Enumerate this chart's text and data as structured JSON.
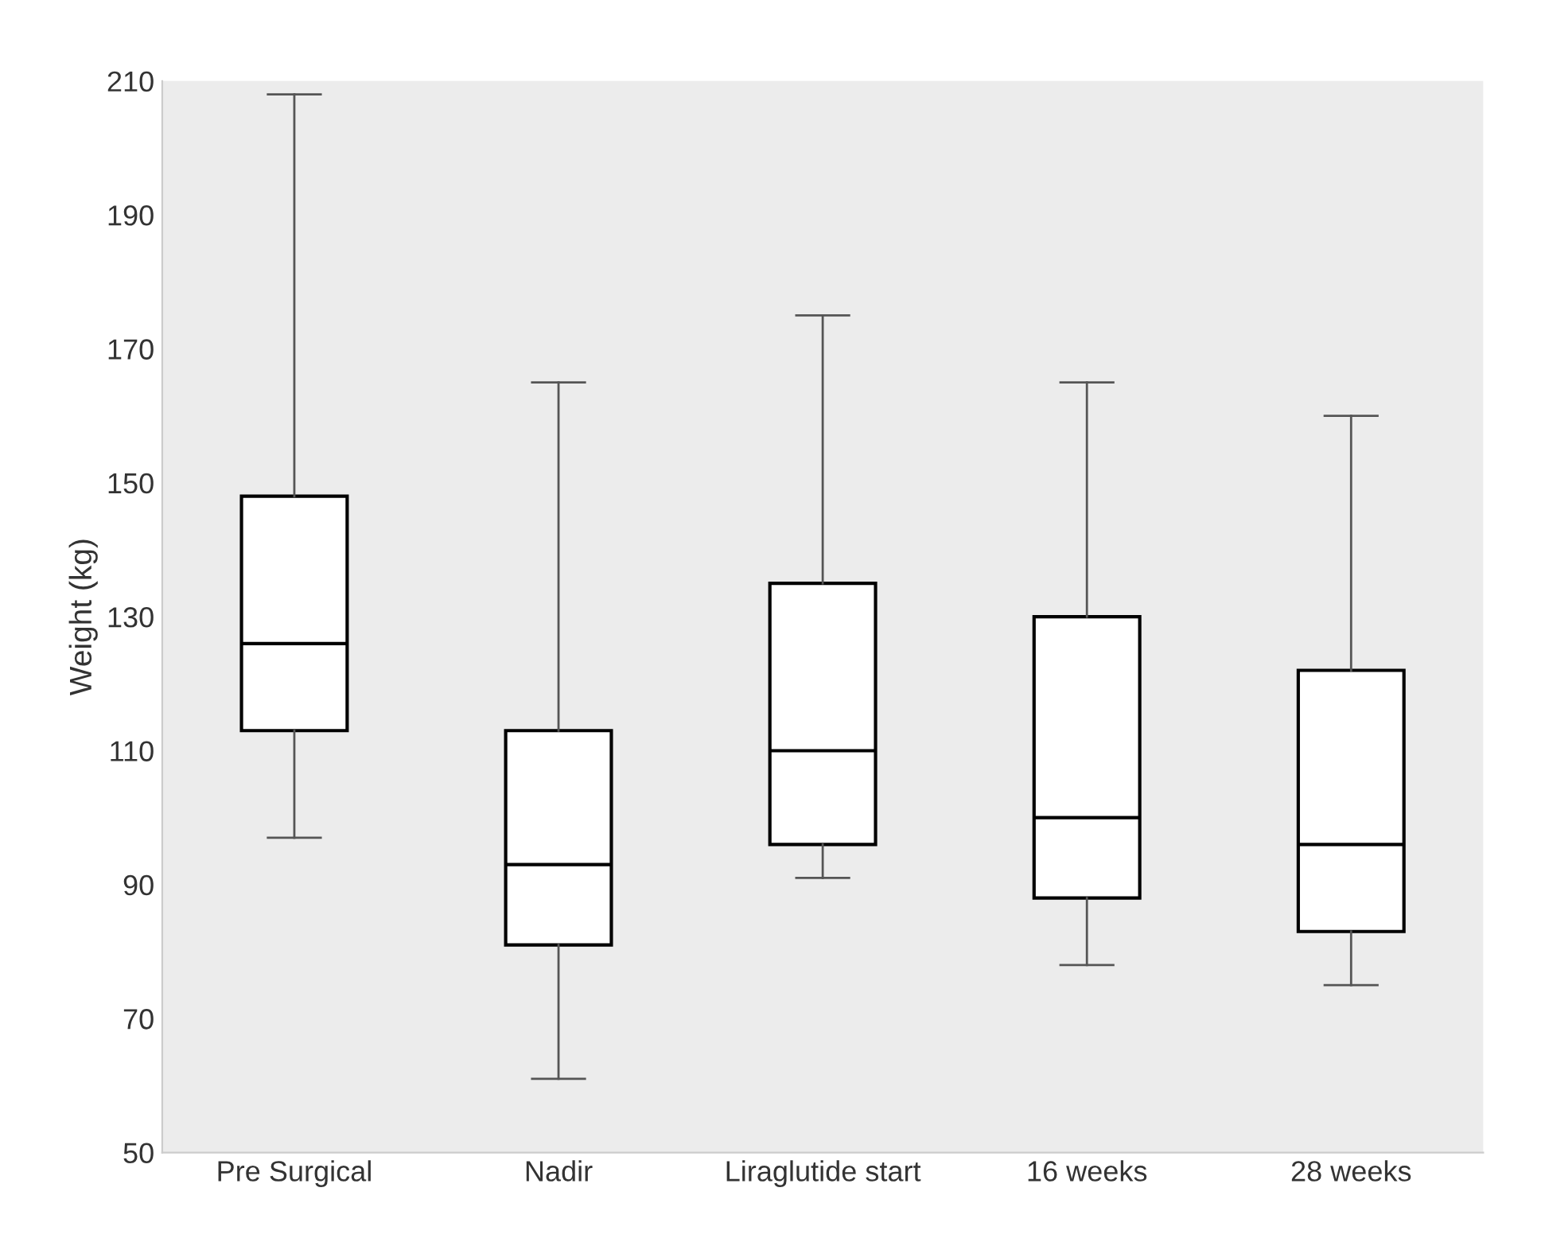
{
  "chart_data": {
    "type": "box",
    "ylabel": "Weight (kg)",
    "categories": [
      "Pre Surgical",
      "Nadir",
      "Liraglutide start",
      "16 weeks",
      "28 weeks"
    ],
    "boxes": [
      {
        "low": 97,
        "q1": 113,
        "median": 126,
        "q3": 148,
        "high": 208
      },
      {
        "low": 61,
        "q1": 81,
        "median": 93,
        "q3": 113,
        "high": 165
      },
      {
        "low": 91,
        "q1": 96,
        "median": 110,
        "q3": 135,
        "high": 175
      },
      {
        "low": 78,
        "q1": 88,
        "median": 100,
        "q3": 130,
        "high": 165
      },
      {
        "low": 75,
        "q1": 83,
        "median": 96,
        "q3": 122,
        "high": 160
      }
    ],
    "color": "#ffffff",
    "ylim": [
      50,
      210
    ],
    "yticks": [
      50,
      70,
      90,
      110,
      130,
      150,
      170,
      190,
      210
    ],
    "grid": false
  }
}
